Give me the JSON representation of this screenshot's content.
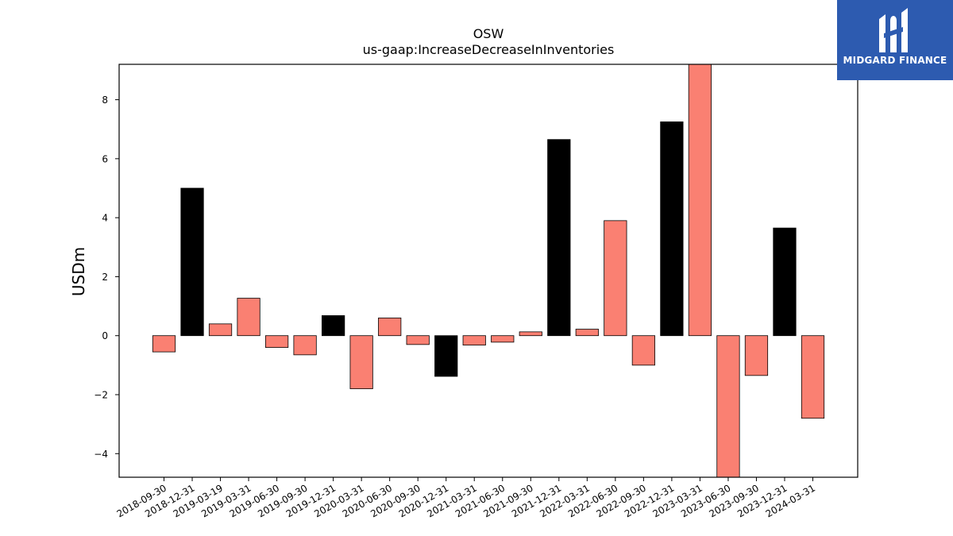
{
  "colors": {
    "positive": "#000000",
    "negative": "#fa8072",
    "logo_bg": "#2d5bb0"
  },
  "logo": {
    "text": "MIDGARD FINANCE",
    "icon": "midgard-logo-icon"
  },
  "chart_data": {
    "type": "bar",
    "title": "OSW",
    "subtitle": "us-gaap:IncreaseDecreaseInInventories",
    "xlabel": "",
    "ylabel": "USDm",
    "ylim": [
      -4.8,
      9.2
    ],
    "yticks": [
      -4,
      -2,
      0,
      2,
      4,
      6,
      8
    ],
    "ytick_labels": [
      "−4",
      "−2",
      "0",
      "2",
      "4",
      "6",
      "8"
    ],
    "grid": false,
    "categories": [
      "2018-09-30",
      "2018-12-31",
      "2019-03-19",
      "2019-03-31",
      "2019-06-30",
      "2019-09-30",
      "2019-12-31",
      "2020-03-31",
      "2020-06-30",
      "2020-09-30",
      "2020-12-31",
      "2021-03-31",
      "2021-06-30",
      "2021-09-30",
      "2021-12-31",
      "2022-03-31",
      "2022-06-30",
      "2022-09-30",
      "2022-12-31",
      "2023-03-31",
      "2023-06-30",
      "2023-09-30",
      "2023-12-31",
      "2024-03-31"
    ],
    "values": [
      -0.55,
      5.0,
      0.4,
      1.27,
      -0.4,
      -0.65,
      0.68,
      -1.8,
      0.6,
      -0.3,
      -1.38,
      -0.32,
      -0.22,
      0.13,
      6.65,
      0.22,
      3.9,
      -1.0,
      7.25,
      9.2,
      -4.8,
      -1.35,
      3.65,
      -2.8
    ],
    "highlight": [
      false,
      true,
      false,
      false,
      false,
      false,
      true,
      false,
      false,
      false,
      true,
      false,
      false,
      false,
      true,
      false,
      false,
      false,
      true,
      false,
      false,
      false,
      true,
      false
    ]
  }
}
